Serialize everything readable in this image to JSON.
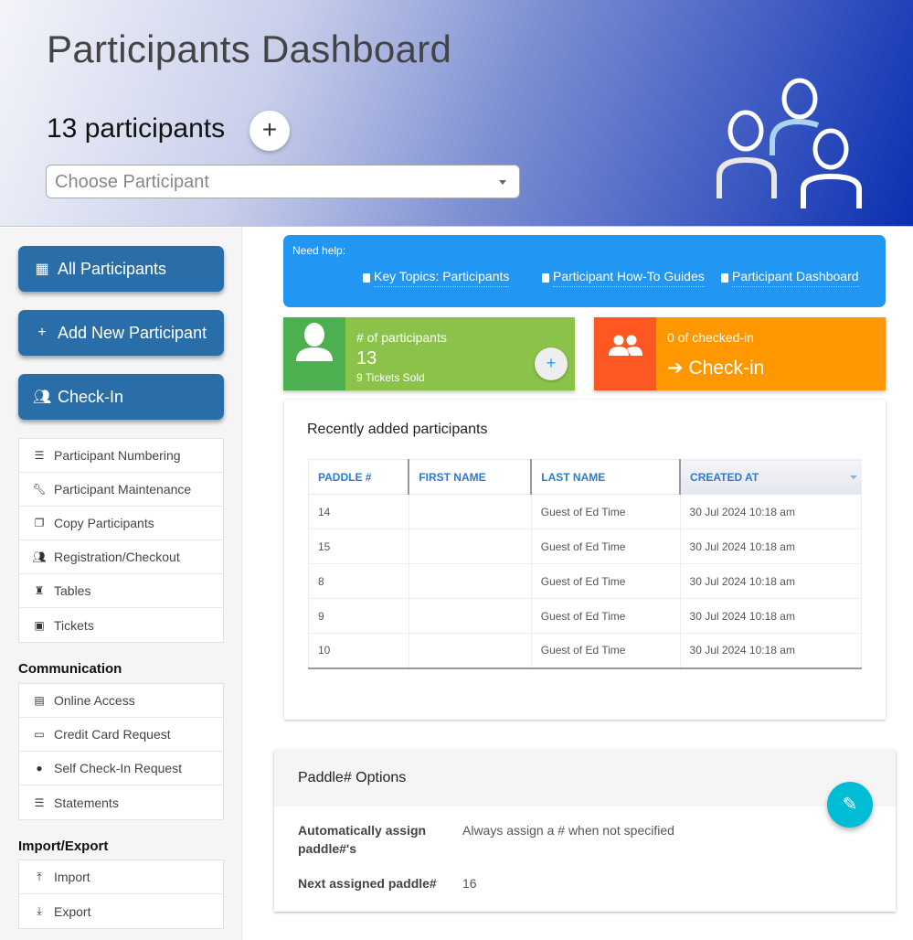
{
  "header": {
    "title": "Participants Dashboard",
    "count": "13 participants",
    "add_icon": "plus-icon",
    "select_placeholder": "Choose Participant"
  },
  "sidebar": {
    "buttons": [
      {
        "label": "All Participants",
        "icon": "grid-icon"
      },
      {
        "label": "Add New Participant",
        "icon": "plus-icon"
      },
      {
        "label": "Check-In",
        "icon": "people-icon"
      }
    ],
    "tools": [
      {
        "label": "Participant Numbering",
        "icon": "list-numbered-icon"
      },
      {
        "label": "Participant Maintenance",
        "icon": "wrench-icon"
      },
      {
        "label": "Copy Participants",
        "icon": "copy-icon"
      },
      {
        "label": "Registration/Checkout",
        "icon": "people-icon"
      },
      {
        "label": "Tables",
        "icon": "chair-icon"
      },
      {
        "label": "Tickets",
        "icon": "ticket-icon"
      }
    ],
    "communication_heading": "Communication",
    "communication": [
      {
        "label": "Online Access",
        "icon": "badge-icon"
      },
      {
        "label": "Credit Card Request",
        "icon": "credit-card-icon"
      },
      {
        "label": "Self Check-In Request",
        "icon": "person-icon"
      },
      {
        "label": "Statements",
        "icon": "list-icon"
      }
    ],
    "import_heading": "Import/Export",
    "import_export": [
      {
        "label": "Import",
        "icon": "upload-icon"
      },
      {
        "label": "Export",
        "icon": "download-icon"
      }
    ]
  },
  "help": {
    "label": "Need help:",
    "links": [
      "Key Topics: Participants",
      "Participant How-To Guides",
      "Participant Dashboard"
    ]
  },
  "cards": {
    "participants": {
      "label": "# of participants",
      "value": "13",
      "sub": "9 Tickets Sold",
      "colors": [
        "#4caf50",
        "#8bc34a"
      ]
    },
    "checkin": {
      "label": "0 of checked-in",
      "action": "➔ Check-in",
      "colors": [
        "#ff5722",
        "#ff9800"
      ]
    }
  },
  "recent": {
    "title": "Recently added participants",
    "columns": [
      "PADDLE #",
      "FIRST NAME",
      "LAST NAME",
      "CREATED AT"
    ],
    "rows": [
      [
        "14",
        "",
        "Guest of Ed Time",
        "30 Jul 2024 10:18 am"
      ],
      [
        "15",
        "",
        "Guest of Ed Time",
        "30 Jul 2024 10:18 am"
      ],
      [
        "8",
        "",
        "Guest of Ed Time",
        "30 Jul 2024 10:18 am"
      ],
      [
        "9",
        "",
        "Guest of Ed Time",
        "30 Jul 2024 10:18 am"
      ],
      [
        "10",
        "",
        "Guest of Ed Time",
        "30 Jul 2024 10:18 am"
      ]
    ]
  },
  "paddle": {
    "title": "Paddle# Options",
    "auto_label": "Automatically assign paddle#'s",
    "auto_value": "Always assign a # when not specified",
    "next_label": "Next assigned paddle#",
    "next_value": "16",
    "edit_icon": "pencil-icon"
  }
}
